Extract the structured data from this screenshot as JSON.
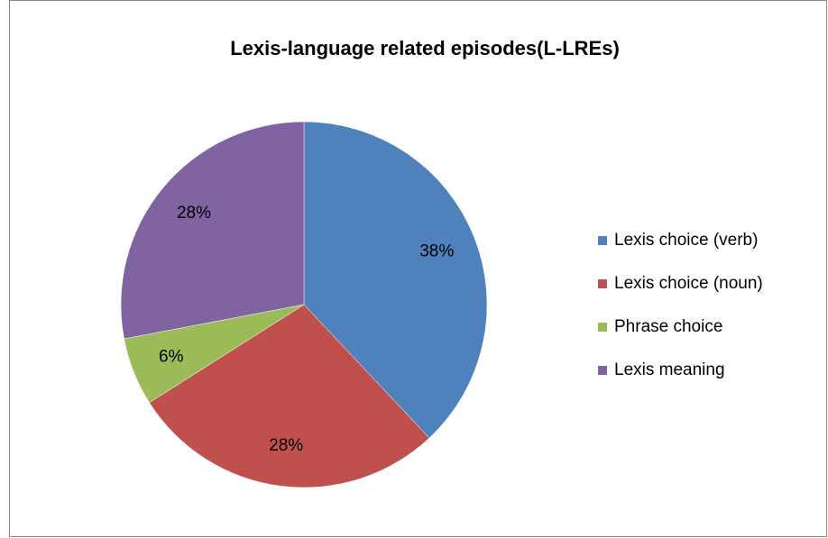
{
  "chart_data": {
    "type": "pie",
    "title": "Lexis-language related episodes(L-LREs)",
    "categories": [
      "Lexis choice (verb)",
      "Lexis choice (noun)",
      "Phrase choice",
      "Lexis meaning"
    ],
    "values": [
      38,
      28,
      6,
      28
    ],
    "value_labels": [
      "38%",
      "28%",
      "6%",
      "28%"
    ],
    "colors": [
      "#4f81bd",
      "#c0504d",
      "#9bbb59",
      "#8064a2"
    ],
    "legend": "right"
  }
}
